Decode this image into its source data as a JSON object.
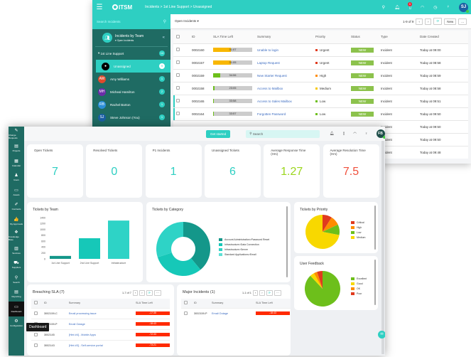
{
  "back": {
    "app_name": "ITSM",
    "breadcrumb": "Incidents  >  1st Line Support  >  Unassigned",
    "notification_count": "3",
    "user_initials": "SJ",
    "sidebar": {
      "search_placeholder": "Search Incidents",
      "title": "Incidents by Team",
      "filter": "Open Incidents",
      "group": {
        "label": "1st Line Support",
        "count": "14"
      },
      "members": [
        {
          "name": "Unassigned",
          "count": "9",
          "initials": "",
          "color": "#000000"
        },
        {
          "name": "Amy Williams",
          "count": "1",
          "initials": "AW",
          "color": "#e04a2c"
        },
        {
          "name": "Micheal Hamilton",
          "count": "2",
          "initials": "MH",
          "color": "#6b2da8"
        },
        {
          "name": "Rachel Barton",
          "count": "1",
          "initials": "RB",
          "color": "#2b8fd8"
        },
        {
          "name": "Steve Johnson (You)",
          "count": "1",
          "initials": "SJ",
          "color": "#1b5fa3"
        }
      ]
    },
    "toolbar": {
      "view": "Open Incidents",
      "paging": "1-9 of 9",
      "new_label": "New",
      "more": "..."
    },
    "table": {
      "headers": [
        "ID",
        "SLA Time Left",
        "Summary",
        "Priority",
        "Status",
        "Type",
        "Date Created"
      ],
      "rows": [
        {
          "id": "0002160",
          "sla": "31:07",
          "pct": 46,
          "bar": "#f8b700",
          "summary": "Unable to login",
          "priority": "Urgent",
          "pcolor": "#e03a1e",
          "status": "NEW",
          "type": "Incident",
          "date": "Today at 09:00"
        },
        {
          "id": "0002157",
          "sla": "31:05",
          "pct": 46,
          "bar": "#f8b700",
          "summary": "Laptop Request",
          "priority": "Urgent",
          "pcolor": "#e03a1e",
          "status": "NEW",
          "type": "Incident",
          "date": "Today at 08:58"
        },
        {
          "id": "0002159",
          "sla": "34:06",
          "pct": 18,
          "bar": "#6dbf1b",
          "summary": "New Starter Request",
          "priority": "High",
          "pcolor": "#ff8c00",
          "status": "NEW",
          "type": "Incident",
          "date": "Today at 08:59"
        },
        {
          "id": "0002158",
          "sla": "23:05",
          "pct": 4,
          "bar": "#6dbf1b",
          "summary": "Access to Mailbox",
          "priority": "Medium",
          "pcolor": "#f8c800",
          "status": "NEW",
          "type": "Incident",
          "date": "Today at 08:58"
        },
        {
          "id": "0002165",
          "sla": "33:58",
          "pct": 1,
          "bar": "#6dbf1b",
          "summary": "Access to Sales Mailbox",
          "priority": "Low",
          "pcolor": "#6dbf1b",
          "status": "NEW",
          "type": "Incident",
          "date": "Today at 09:51"
        },
        {
          "id": "0002164",
          "sla": "33:57",
          "pct": 1,
          "bar": "#6dbf1b",
          "summary": "Forgotten Password",
          "priority": "Low",
          "pcolor": "#6dbf1b",
          "status": "NEW",
          "type": "Incident",
          "date": "Today at 09:50"
        },
        {
          "id": "",
          "sla": "",
          "pct": 0,
          "bar": "",
          "summary": "",
          "priority": "",
          "pcolor": "",
          "status": "",
          "type": "Incident",
          "date": "Today at 09:50"
        },
        {
          "id": "",
          "sla": "",
          "pct": 0,
          "bar": "",
          "summary": "",
          "priority": "",
          "pcolor": "",
          "status": "",
          "type": "Incident",
          "date": "Today at 09:50"
        },
        {
          "id": "",
          "sla": "",
          "pct": 0,
          "bar": "",
          "summary": "",
          "priority": "",
          "pcolor": "",
          "status": "",
          "type": "Incident",
          "date": "Today at 09:48"
        }
      ]
    }
  },
  "front": {
    "nav": [
      {
        "label": "Change Requests",
        "icon": "✎"
      },
      {
        "label": "Projects",
        "icon": "▤"
      },
      {
        "label": "Calendar",
        "icon": "▦"
      },
      {
        "label": "Users",
        "icon": "♟"
      },
      {
        "label": "Assets",
        "icon": "▭"
      },
      {
        "label": "Contracts",
        "icon": "✐"
      },
      {
        "label": "My Approvals",
        "icon": "👍"
      },
      {
        "label": "Knowledge Base",
        "icon": "❖"
      },
      {
        "label": "Services",
        "icon": "▥"
      },
      {
        "label": "Suppliers",
        "icon": "⛟"
      },
      {
        "label": "Search",
        "icon": "⚲"
      },
      {
        "label": "Reporting",
        "icon": "▤"
      },
      {
        "label": "Dashboard",
        "icon": "▭"
      },
      {
        "label": "Configuration",
        "icon": "⚙"
      }
    ],
    "tooltip": "Dashboard",
    "get_started": "Get started",
    "search_placeholder": "Search",
    "user_initials": "FB",
    "kpis": [
      {
        "label": "Open Tickets",
        "value": "7",
        "color": "#2ecfc2"
      },
      {
        "label": "Resolved Tickets",
        "value": "0",
        "color": "#2ecfc2"
      },
      {
        "label": "P1 Incidents",
        "value": "1",
        "color": "#2ecfc2"
      },
      {
        "label": "Unassigned Tickets",
        "value": "6",
        "color": "#2ecfc2"
      },
      {
        "label": "Average Response Time (Hrs)",
        "value": "1.27",
        "color": "#9bd61c"
      },
      {
        "label": "Average Resolution Time (Hrs)",
        "value": "7.5",
        "color": "#f0503c"
      }
    ],
    "breaching": {
      "title": "Breaching SLA (7)",
      "paging": "1-7 of 7",
      "headers": [
        "ID",
        "Summary",
        "SLA Time Left"
      ],
      "rows": [
        {
          "id": "3002159-C",
          "summary": "Email processing issue",
          "sla": "-17:35"
        },
        {
          "id": "3002159-P",
          "summary": "Email Outage",
          "sla": "-18:43"
        },
        {
          "id": "3002145",
          "summary": "[Hint #4] - Mobile Apps",
          "sla": "-72:33"
        },
        {
          "id": "3002143",
          "summary": "[Hint #3] - Self-service portal",
          "sla": "-73:21"
        }
      ]
    },
    "major": {
      "title": "Major Incidents (1)",
      "paging": "1-1 of 1",
      "headers": [
        "ID",
        "Summary",
        "SLA Time Left"
      ],
      "rows": [
        {
          "id": "3002159-P",
          "summary": "Email Outage",
          "sla": "-18:43"
        }
      ]
    }
  },
  "chart_data": [
    {
      "type": "bar",
      "title": "Tickets by Team",
      "categories": [
        "1st Line Support",
        "2nd Line Support",
        "Infrastructure"
      ],
      "values": [
        100,
        700,
        1300
      ],
      "yticks": [
        0,
        200,
        400,
        600,
        800,
        1000,
        1200,
        1400
      ],
      "ylim": [
        0,
        1400
      ],
      "colors": [
        "#14978a",
        "#16c8b8",
        "#2ed3c6"
      ]
    },
    {
      "type": "pie",
      "title": "Tickets by Category",
      "donut": true,
      "categories": [
        "Account Administration>Password Reset",
        "Infrastructure>Data Connection",
        "Infrastructure>Server",
        "Standard Applications>Email"
      ],
      "values": [
        39,
        31,
        30,
        0
      ],
      "colors": [
        "#14978a",
        "#16c8b8",
        "#2ed3c6",
        "#5fe0d5"
      ]
    },
    {
      "type": "pie",
      "title": "Tickets by Priority",
      "categories": [
        "Critical",
        "High",
        "Low",
        "Medium"
      ],
      "values": [
        9,
        9,
        10,
        72
      ],
      "colors": [
        "#e03a1e",
        "#ff8c00",
        "#6dbf1b",
        "#f8d800"
      ]
    },
    {
      "type": "pie",
      "title": "User Feedback",
      "categories": [
        "Excellent",
        "Good",
        "OK",
        "Poor"
      ],
      "values": [
        88,
        4,
        3,
        5
      ],
      "colors": [
        "#6dbf1b",
        "#f8d800",
        "#ff8c00",
        "#e03a1e"
      ]
    }
  ]
}
